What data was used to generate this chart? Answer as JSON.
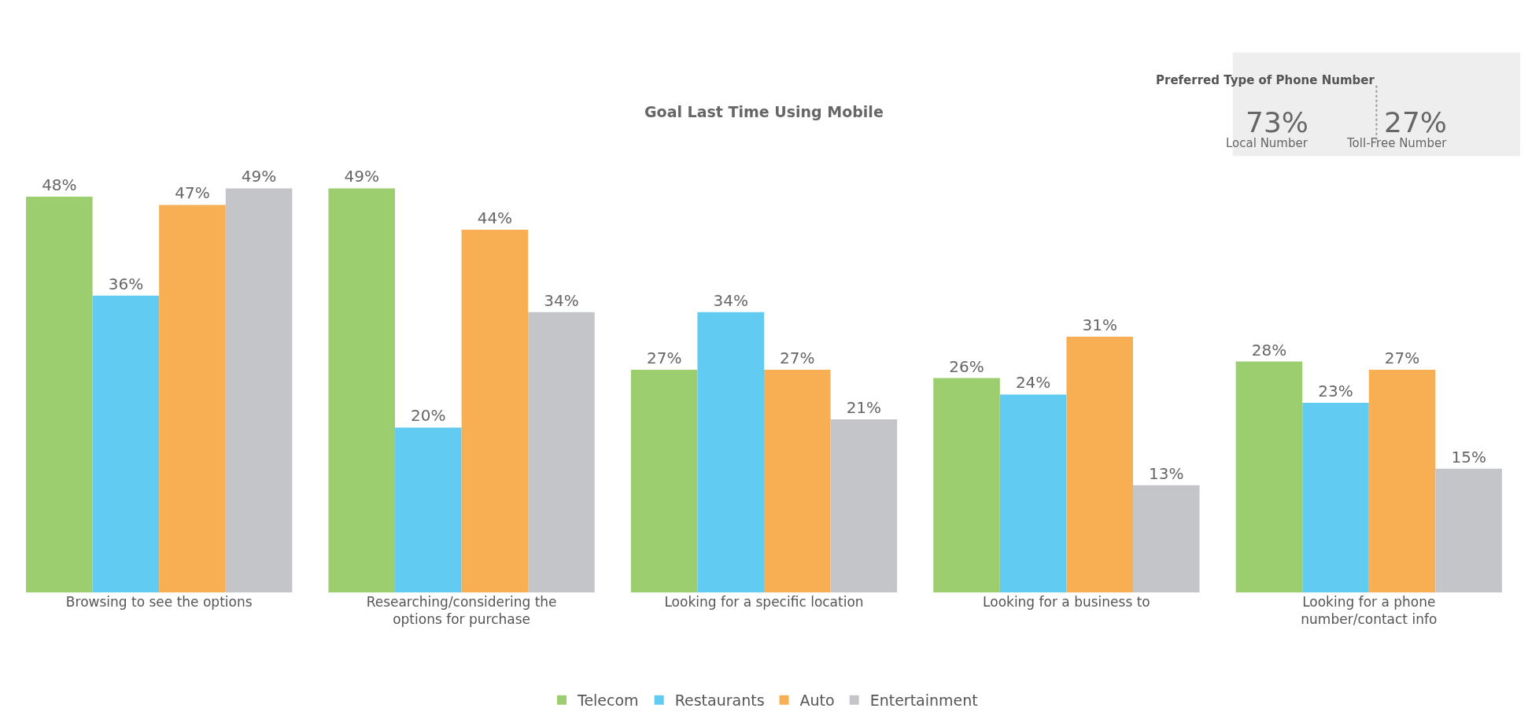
{
  "chart_data": [
    {
      "type": "bar",
      "title": "Goal Last Time Using Mobile",
      "categories": [
        "Browsing to see the options",
        "Researching/considering the\noptions for purchase",
        "Looking for a specific location",
        "Looking for a business to",
        "Looking for a phone\nnumber/contact info"
      ],
      "series": [
        {
          "name": "Telecom",
          "color": "#9ccd6e",
          "values": [
            48,
            49,
            27,
            26,
            28
          ],
          "value_labels": [
            "48%",
            "49%",
            "27%",
            "26%",
            "28%"
          ]
        },
        {
          "name": "Restaurants",
          "color": "#62cbf2",
          "values": [
            36,
            20,
            34,
            24,
            23
          ],
          "value_labels": [
            "36%",
            "20%",
            "34%",
            "24%",
            "23%"
          ]
        },
        {
          "name": "Auto",
          "color": "#f8ae53",
          "values": [
            47,
            44,
            27,
            31,
            27
          ],
          "value_labels": [
            "47%",
            "44%",
            "27%",
            "31%",
            "27%"
          ]
        },
        {
          "name": "Entertainment",
          "color": "#c4c5c9",
          "values": [
            49,
            34,
            21,
            13,
            15
          ],
          "value_labels": [
            "49%",
            "34%",
            "21%",
            "13%",
            "15%"
          ]
        }
      ],
      "legend": "bottom"
    },
    {
      "type": "other",
      "title": "Preferred Type of Phone Number",
      "annotations": [
        "73%",
        "Local Number",
        "27%",
        "Toll-Free Number"
      ]
    }
  ]
}
